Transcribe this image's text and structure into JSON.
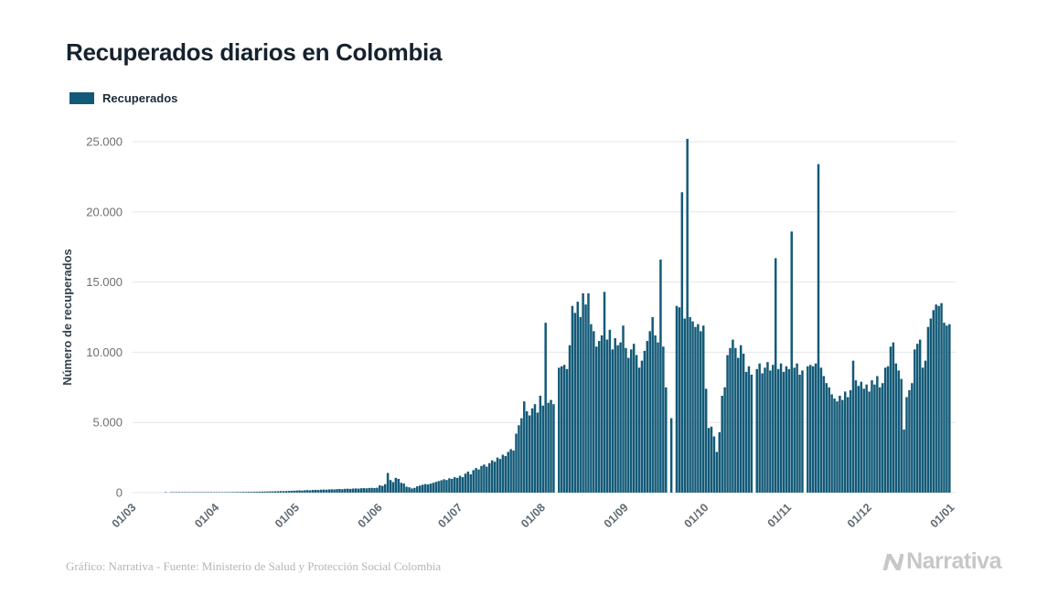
{
  "title": "Recuperados diarios en Colombia",
  "legend": {
    "label": "Recuperados"
  },
  "colors": {
    "bar": "#135a78",
    "grid": "#e6e6e6",
    "title_text": "#16222e",
    "tick_text": "#6f6f6f",
    "credit_text": "#b5b5b5",
    "logo_gray": "#c7c7c7"
  },
  "footer": {
    "credit": "Gráfico: Narrativa - Fuente: Ministerio de Salud y Protección Social Colombia",
    "logo_text": "Narrativa"
  },
  "chart_data": {
    "type": "bar",
    "title": "Recuperados diarios en Colombia",
    "xlabel": "",
    "ylabel": "Número de recuperados",
    "ylim": [
      0,
      25000
    ],
    "ytick_step": 5000,
    "ytick_labels": [
      "0",
      "5.000",
      "10.000",
      "15.000",
      "20.000",
      "25.000"
    ],
    "grid": true,
    "legend_position": "top-left",
    "xticks": [
      {
        "label": "01/03",
        "day": 0
      },
      {
        "label": "01/04",
        "day": 31
      },
      {
        "label": "01/05",
        "day": 61
      },
      {
        "label": "01/06",
        "day": 92
      },
      {
        "label": "01/07",
        "day": 122
      },
      {
        "label": "01/08",
        "day": 153
      },
      {
        "label": "01/09",
        "day": 184
      },
      {
        "label": "01/10",
        "day": 214
      },
      {
        "label": "01/11",
        "day": 245
      },
      {
        "label": "01/12",
        "day": 275
      },
      {
        "label": "01/01",
        "day": 306
      }
    ],
    "series": [
      {
        "name": "Recuperados",
        "start_date": "2020-03-01",
        "values": [
          0,
          0,
          0,
          0,
          0,
          0,
          0,
          0,
          0,
          0,
          0,
          0,
          1,
          0,
          2,
          1,
          3,
          2,
          4,
          3,
          6,
          5,
          8,
          7,
          10,
          9,
          12,
          14,
          16,
          18,
          22,
          25,
          20,
          30,
          28,
          35,
          32,
          40,
          38,
          45,
          42,
          50,
          48,
          55,
          52,
          60,
          58,
          65,
          70,
          75,
          80,
          85,
          90,
          95,
          100,
          110,
          105,
          115,
          120,
          130,
          140,
          150,
          160,
          145,
          170,
          180,
          165,
          190,
          200,
          185,
          210,
          220,
          205,
          230,
          240,
          225,
          250,
          260,
          245,
          270,
          280,
          265,
          290,
          300,
          285,
          310,
          320,
          305,
          330,
          340,
          325,
          350,
          520,
          480,
          600,
          1400,
          900,
          750,
          1050,
          980,
          700,
          650,
          420,
          380,
          300,
          340,
          450,
          500,
          560,
          610,
          580,
          640,
          700,
          760,
          820,
          880,
          950,
          900,
          1020,
          980,
          1100,
          1050,
          1200,
          1100,
          1350,
          1500,
          1300,
          1600,
          1750,
          1650,
          1900,
          2000,
          1850,
          2100,
          2300,
          2200,
          2500,
          2400,
          2700,
          2600,
          2900,
          3100,
          3000,
          4200,
          4800,
          5300,
          6500,
          5800,
          5500,
          6000,
          6300,
          5700,
          6900,
          6200,
          12100,
          6400,
          6600,
          6300,
          0,
          8900,
          9000,
          9100,
          8800,
          10500,
          13300,
          12800,
          13600,
          12500,
          14200,
          13400,
          14200,
          12000,
          11500,
          10400,
          10800,
          11200,
          14300,
          10900,
          11600,
          10200,
          11000,
          10500,
          10700,
          11900,
          10300,
          9600,
          10200,
          10600,
          9800,
          8900,
          9400,
          10100,
          10800,
          11500,
          12500,
          11200,
          10700,
          16600,
          10400,
          7500,
          0,
          5300,
          0,
          13300,
          13200,
          21400,
          12400,
          25200,
          12500,
          12200,
          11800,
          12000,
          11500,
          11900,
          7400,
          4600,
          4700,
          4000,
          2900,
          4300,
          6900,
          7500,
          9800,
          10300,
          10900,
          10300,
          9600,
          10500,
          9900,
          8600,
          9000,
          8400,
          0,
          8800,
          9200,
          8500,
          8900,
          9300,
          8700,
          9100,
          16700,
          8800,
          9200,
          8600,
          9000,
          8800,
          18600,
          8900,
          9200,
          8400,
          8700,
          0,
          9000,
          9100,
          9000,
          9200,
          23400,
          8900,
          8300,
          7800,
          7500,
          7000,
          6700,
          6500,
          6900,
          6600,
          7200,
          6800,
          7300,
          9400,
          8000,
          7600,
          7900,
          7400,
          7700,
          7200,
          8000,
          7700,
          8300,
          7500,
          7800,
          8900,
          9000,
          10400,
          10700,
          9200,
          8700,
          8100,
          4500,
          6800,
          7300,
          7800,
          10200,
          10600,
          10900,
          8900,
          9400,
          11800,
          12400,
          13000,
          13400,
          13300,
          13500,
          12100,
          11900,
          12000
        ]
      }
    ]
  }
}
